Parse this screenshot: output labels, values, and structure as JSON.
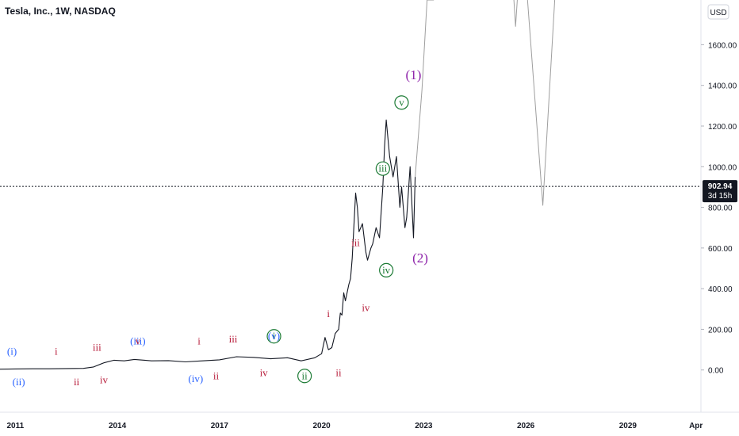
{
  "header": {
    "title": "Tesla, Inc., 1W, NASDAQ",
    "currency": "USD"
  },
  "price_badge": {
    "price": "902.94",
    "countdown": "3d 15h"
  },
  "colors": {
    "price_line": "#131722",
    "projection_line": "#9e9e9e",
    "wave_blue": "#2962ff",
    "wave_red": "#b71c3a",
    "wave_green": "#1b7a34",
    "wave_purple": "#8e24aa",
    "badge_bg": "#131722"
  },
  "chart_data": {
    "type": "line",
    "title": "Tesla, Inc., 1W, NASDAQ",
    "xlabel": "",
    "ylabel": "",
    "ylim": [
      -200,
      1820
    ],
    "xlim": [
      2010.55,
      2031.1
    ],
    "grid": false,
    "y_ticks": [
      "0.00",
      "200.00",
      "400.00",
      "600.00",
      "800.00",
      "1000.00",
      "1200.00",
      "1400.00",
      "1600.00"
    ],
    "x_ticks": [
      {
        "x": 2011,
        "label": "2011"
      },
      {
        "x": 2014,
        "label": "2014"
      },
      {
        "x": 2017,
        "label": "2017"
      },
      {
        "x": 2020,
        "label": "2020"
      },
      {
        "x": 2023,
        "label": "2023"
      },
      {
        "x": 2026,
        "label": "2026"
      },
      {
        "x": 2029,
        "label": "2029"
      },
      {
        "x": 2031,
        "label": "Apr"
      }
    ],
    "current_price": 902.94,
    "series": [
      {
        "role": "price",
        "x": [
          2010.5,
          2011.0,
          2011.5,
          2012.0,
          2012.5,
          2013.0,
          2013.3,
          2013.6,
          2013.9,
          2014.2,
          2014.5,
          2014.8,
          2015.0,
          2015.5,
          2016.0,
          2016.5,
          2017.0,
          2017.5,
          2018.0,
          2018.5,
          2019.0,
          2019.4,
          2019.8,
          2020.0,
          2020.1,
          2020.2,
          2020.3,
          2020.4,
          2020.5,
          2020.55,
          2020.6,
          2020.65,
          2020.7,
          2020.8,
          2020.85,
          2020.9,
          2021.0,
          2021.05,
          2021.1,
          2021.2,
          2021.3,
          2021.35,
          2021.45,
          2021.5,
          2021.6,
          2021.7,
          2021.8,
          2021.85,
          2021.9,
          2022.0,
          2022.1,
          2022.2,
          2022.3,
          2022.35,
          2022.45,
          2022.5,
          2022.6,
          2022.7,
          2022.75
        ],
        "values": [
          4,
          5,
          6,
          6,
          7,
          8,
          15,
          35,
          48,
          45,
          52,
          48,
          45,
          46,
          40,
          45,
          50,
          65,
          62,
          55,
          60,
          45,
          60,
          80,
          160,
          100,
          110,
          180,
          200,
          280,
          270,
          380,
          340,
          420,
          450,
          550,
          870,
          800,
          680,
          720,
          580,
          540,
          600,
          620,
          700,
          650,
          900,
          1100,
          1230,
          1050,
          950,
          1050,
          800,
          900,
          700,
          750,
          1000,
          650,
          950
        ]
      },
      {
        "role": "projection",
        "x": [
          2022.75,
          2022.95,
          2023.1,
          2023.3
        ],
        "values": [
          950,
          1380,
          1820,
          1820
        ]
      },
      {
        "role": "projection",
        "x": [
          2025.65,
          2025.7,
          2025.75
        ],
        "values": [
          1820,
          1690,
          1820
        ]
      },
      {
        "role": "projection",
        "x": [
          2026.05,
          2026.5,
          2026.85
        ],
        "values": [
          1820,
          810,
          1820
        ]
      }
    ],
    "annotations": [
      {
        "text": "(i)",
        "x": 2010.9,
        "y": 75,
        "color": "blue",
        "circled": false
      },
      {
        "text": "(ii)",
        "x": 2011.1,
        "y": -75,
        "color": "blue",
        "circled": false
      },
      {
        "text": "i",
        "x": 2012.2,
        "y": 75,
        "color": "red",
        "circled": false
      },
      {
        "text": "ii",
        "x": 2012.8,
        "y": -75,
        "color": "red",
        "circled": false
      },
      {
        "text": "iii",
        "x": 2013.4,
        "y": 95,
        "color": "red",
        "circled": false
      },
      {
        "text": "iv",
        "x": 2013.6,
        "y": -65,
        "color": "red",
        "circled": false
      },
      {
        "text": "(iii)",
        "x": 2014.6,
        "y": 125,
        "color": "blue",
        "circled": false
      },
      {
        "text": "v",
        "x": 2014.6,
        "y": 125,
        "color": "red",
        "circled": false
      },
      {
        "text": "i",
        "x": 2016.4,
        "y": 125,
        "color": "red",
        "circled": false
      },
      {
        "text": "(iv)",
        "x": 2016.3,
        "y": -60,
        "color": "blue",
        "circled": false
      },
      {
        "text": "ii",
        "x": 2016.9,
        "y": -45,
        "color": "red",
        "circled": false
      },
      {
        "text": "iii",
        "x": 2017.4,
        "y": 135,
        "color": "red",
        "circled": false
      },
      {
        "text": "iv",
        "x": 2018.3,
        "y": -30,
        "color": "red",
        "circled": false
      },
      {
        "text": "i",
        "x": 2018.6,
        "y": 150,
        "color": "green",
        "circled": true
      },
      {
        "text": "(v)",
        "x": 2018.6,
        "y": 150,
        "color": "blue",
        "circled": false
      },
      {
        "text": "ii",
        "x": 2019.5,
        "y": -45,
        "color": "green",
        "circled": true
      },
      {
        "text": "i",
        "x": 2020.2,
        "y": 260,
        "color": "red",
        "circled": false
      },
      {
        "text": "ii",
        "x": 2020.5,
        "y": -30,
        "color": "red",
        "circled": false
      },
      {
        "text": "iv",
        "x": 2021.3,
        "y": 290,
        "color": "red",
        "circled": false
      },
      {
        "text": "iii",
        "x": 2021.0,
        "y": 610,
        "color": "red",
        "circled": false
      },
      {
        "text": "iv",
        "x": 2021.9,
        "y": 475,
        "color": "green",
        "circled": true
      },
      {
        "text": "iii",
        "x": 2021.8,
        "y": 975,
        "color": "green",
        "circled": true
      },
      {
        "text": "v",
        "x": 2022.35,
        "y": 1300,
        "color": "green",
        "circled": true
      },
      {
        "text": "(1)",
        "x": 2022.7,
        "y": 1430,
        "color": "purple",
        "circled": false,
        "big": true
      },
      {
        "text": "(2)",
        "x": 2022.9,
        "y": 530,
        "color": "purple",
        "circled": false,
        "big": true
      }
    ]
  }
}
